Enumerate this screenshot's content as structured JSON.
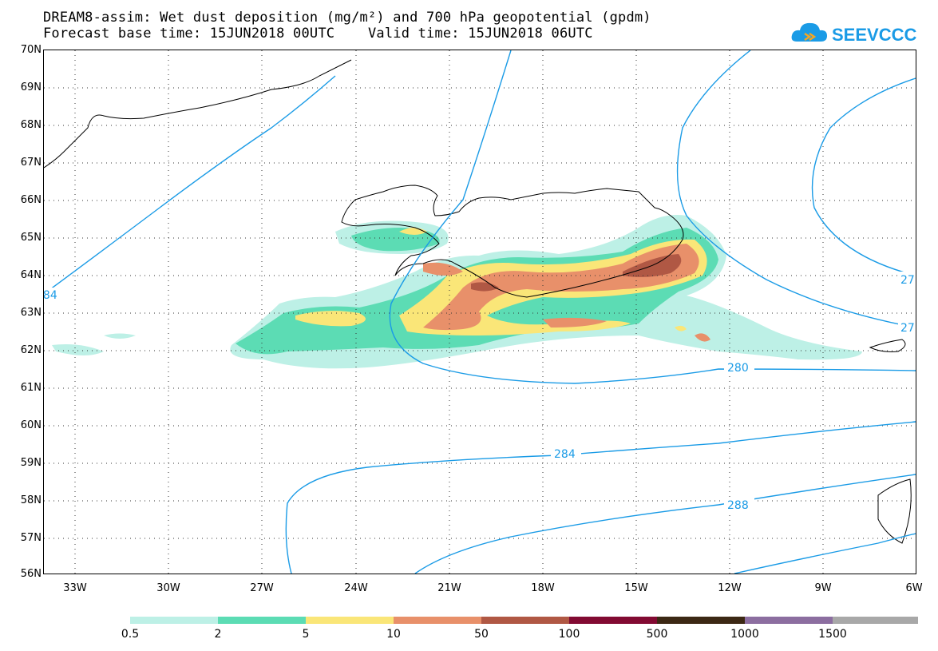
{
  "header": {
    "title_line1": "DREAM8-assim: Wet dust deposition (mg/m²) and 700 hPa geopotential (gpdm)",
    "title_line2": "Forecast base time: 15JUN2018 00UTC    Valid time: 15JUN2018 06UTC",
    "logo_text": "SEEVCCC"
  },
  "map": {
    "lat_labels": [
      "70N",
      "69N",
      "68N",
      "67N",
      "66N",
      "65N",
      "64N",
      "63N",
      "62N",
      "61N",
      "60N",
      "59N",
      "58N",
      "57N",
      "56N"
    ],
    "lon_labels": [
      "33W",
      "30W",
      "27W",
      "24W",
      "21W",
      "18W",
      "15W",
      "12W",
      "9W",
      "6W"
    ],
    "contour_labels": [
      "284",
      "280",
      "284",
      "288",
      "27",
      "27",
      "28"
    ],
    "contour_color": "#1a9be6",
    "grid": "dotted"
  },
  "colorbar": {
    "labels": [
      "0.5",
      "2",
      "5",
      "10",
      "50",
      "100",
      "500",
      "1000",
      "1500"
    ],
    "colors": [
      "#bdf0e6",
      "#5cdcb4",
      "#fae678",
      "#e8906a",
      "#b05844",
      "#820a32",
      "#3c2814",
      "#8c6ea0",
      "#a8a8a8"
    ]
  }
}
